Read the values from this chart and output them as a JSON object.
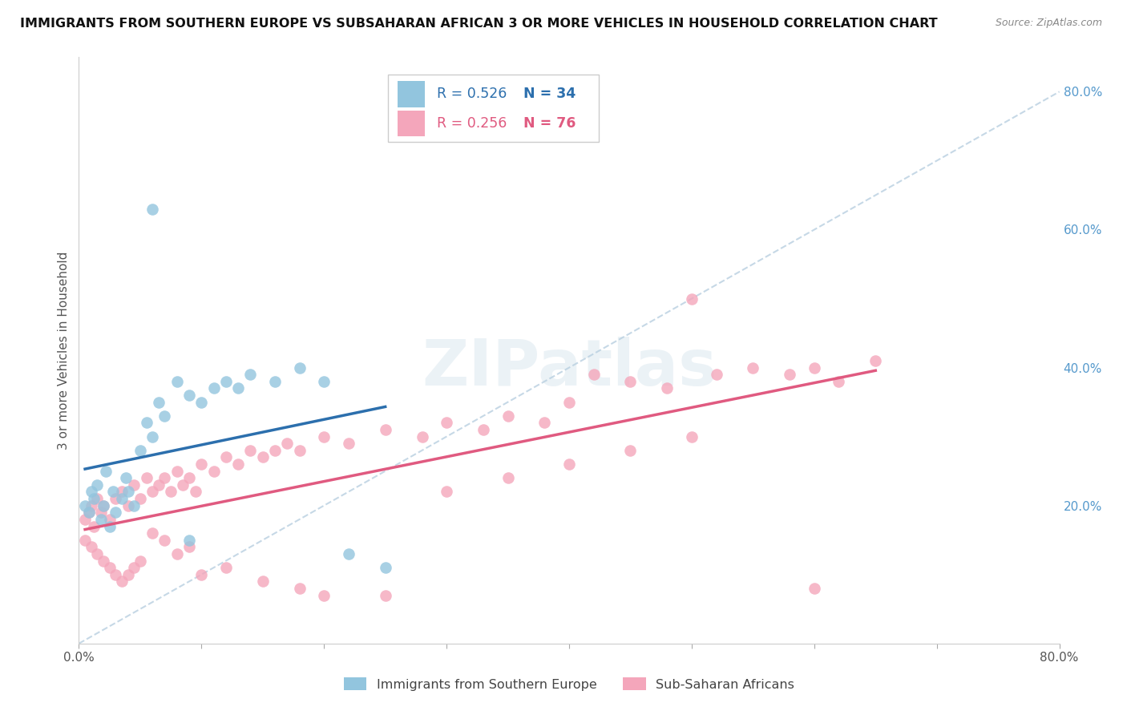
{
  "title": "IMMIGRANTS FROM SOUTHERN EUROPE VS SUBSAHARAN AFRICAN 3 OR MORE VEHICLES IN HOUSEHOLD CORRELATION CHART",
  "source": "Source: ZipAtlas.com",
  "ylabel": "3 or more Vehicles in Household",
  "xlim": [
    0.0,
    0.8
  ],
  "ylim": [
    0.0,
    0.85
  ],
  "ytick_right": [
    0.0,
    0.2,
    0.4,
    0.6,
    0.8
  ],
  "ytick_right_labels": [
    "",
    "20.0%",
    "40.0%",
    "60.0%",
    "80.0%"
  ],
  "blue_color": "#92c5de",
  "blue_line_color": "#2c6fad",
  "pink_color": "#f4a6bb",
  "pink_line_color": "#e05a80",
  "legend_R1": "R = 0.526",
  "legend_N1": "N = 34",
  "legend_R2": "R = 0.256",
  "legend_N2": "N = 76",
  "watermark_text": "ZIPatlas",
  "blue_label": "Immigrants from Southern Europe",
  "pink_label": "Sub-Saharan Africans",
  "blue_scatter_x": [
    0.005,
    0.008,
    0.01,
    0.012,
    0.015,
    0.018,
    0.02,
    0.022,
    0.025,
    0.028,
    0.03,
    0.035,
    0.038,
    0.04,
    0.045,
    0.05,
    0.055,
    0.06,
    0.065,
    0.07,
    0.08,
    0.09,
    0.1,
    0.11,
    0.12,
    0.13,
    0.14,
    0.16,
    0.18,
    0.2,
    0.06,
    0.09,
    0.22,
    0.25
  ],
  "blue_scatter_y": [
    0.2,
    0.19,
    0.22,
    0.21,
    0.23,
    0.18,
    0.2,
    0.25,
    0.17,
    0.22,
    0.19,
    0.21,
    0.24,
    0.22,
    0.2,
    0.28,
    0.32,
    0.3,
    0.35,
    0.33,
    0.38,
    0.36,
    0.35,
    0.37,
    0.38,
    0.37,
    0.39,
    0.38,
    0.4,
    0.38,
    0.63,
    0.15,
    0.13,
    0.11
  ],
  "pink_scatter_x": [
    0.005,
    0.008,
    0.01,
    0.012,
    0.015,
    0.018,
    0.02,
    0.025,
    0.03,
    0.035,
    0.04,
    0.045,
    0.05,
    0.055,
    0.06,
    0.065,
    0.07,
    0.075,
    0.08,
    0.085,
    0.09,
    0.095,
    0.1,
    0.11,
    0.12,
    0.13,
    0.14,
    0.15,
    0.16,
    0.17,
    0.18,
    0.2,
    0.22,
    0.25,
    0.28,
    0.3,
    0.33,
    0.35,
    0.38,
    0.4,
    0.42,
    0.45,
    0.48,
    0.5,
    0.52,
    0.55,
    0.58,
    0.6,
    0.62,
    0.65,
    0.005,
    0.01,
    0.015,
    0.02,
    0.025,
    0.03,
    0.035,
    0.04,
    0.045,
    0.05,
    0.06,
    0.07,
    0.08,
    0.09,
    0.1,
    0.12,
    0.15,
    0.18,
    0.2,
    0.25,
    0.3,
    0.35,
    0.4,
    0.45,
    0.5,
    0.6
  ],
  "pink_scatter_y": [
    0.18,
    0.19,
    0.2,
    0.17,
    0.21,
    0.19,
    0.2,
    0.18,
    0.21,
    0.22,
    0.2,
    0.23,
    0.21,
    0.24,
    0.22,
    0.23,
    0.24,
    0.22,
    0.25,
    0.23,
    0.24,
    0.22,
    0.26,
    0.25,
    0.27,
    0.26,
    0.28,
    0.27,
    0.28,
    0.29,
    0.28,
    0.3,
    0.29,
    0.31,
    0.3,
    0.32,
    0.31,
    0.33,
    0.32,
    0.35,
    0.39,
    0.38,
    0.37,
    0.5,
    0.39,
    0.4,
    0.39,
    0.4,
    0.38,
    0.41,
    0.15,
    0.14,
    0.13,
    0.12,
    0.11,
    0.1,
    0.09,
    0.1,
    0.11,
    0.12,
    0.16,
    0.15,
    0.13,
    0.14,
    0.1,
    0.11,
    0.09,
    0.08,
    0.07,
    0.07,
    0.22,
    0.24,
    0.26,
    0.28,
    0.3,
    0.08
  ]
}
